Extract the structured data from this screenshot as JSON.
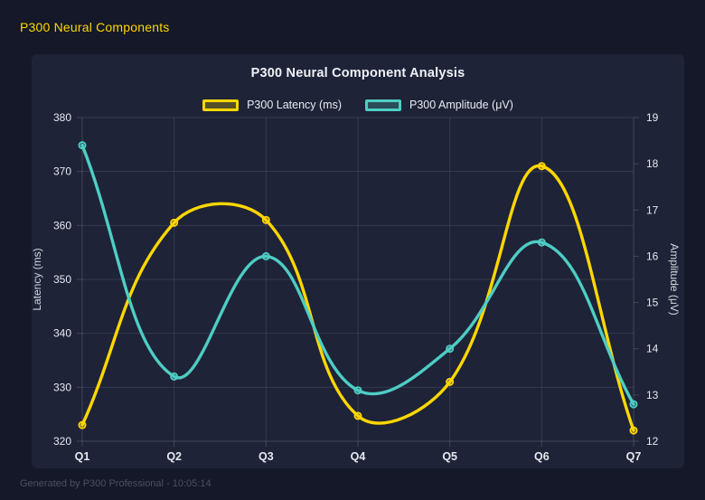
{
  "header": {
    "title": "P300 Neural Components"
  },
  "footer": {
    "text": "Generated by P300 Professional - 10:05:14"
  },
  "colors": {
    "page_bg": "#141828",
    "panel_bg": "#1e2337",
    "accent_gold": "#FFD700",
    "accent_teal": "#4ECDC4",
    "tick_text": "#e7e9f0",
    "grid": "rgba(255,255,255,0.10)",
    "grid_edge": "rgba(255,255,255,0.16)"
  },
  "chart_data": {
    "type": "line",
    "title": "P300 Neural Component Analysis",
    "categories": [
      "Q1",
      "Q2",
      "Q3",
      "Q4",
      "Q5",
      "Q6",
      "Q7"
    ],
    "series": [
      {
        "name": "P300 Latency (ms)",
        "color": "#FFD700",
        "axis": "left",
        "values": [
          323,
          360.5,
          361,
          324.7,
          331,
          371,
          322
        ]
      },
      {
        "name": "P300 Amplitude (μV)",
        "color": "#4ECDC4",
        "axis": "right",
        "values": [
          18.4,
          13.4,
          16.0,
          13.1,
          14.0,
          16.3,
          12.8
        ]
      }
    ],
    "axes": {
      "left": {
        "label": "Latency (ms)",
        "min": 320,
        "max": 380,
        "step": 10
      },
      "right": {
        "label": "Amplitude (μV)",
        "min": 12,
        "max": 19,
        "step": 1
      }
    },
    "legend_position": "top",
    "grid": true,
    "smoothing": 0.4
  }
}
